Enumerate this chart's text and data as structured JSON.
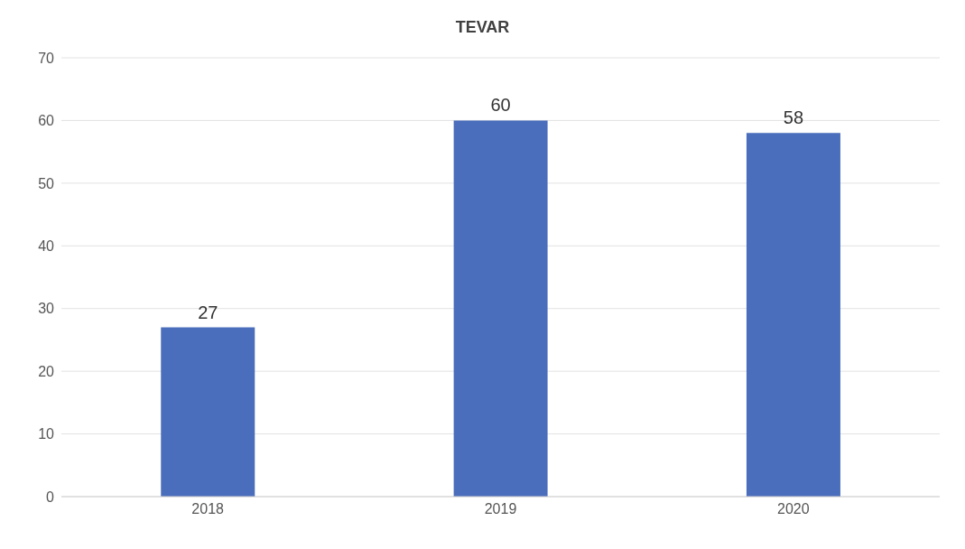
{
  "chart_data": {
    "type": "bar",
    "title": "TEVAR",
    "categories": [
      "2018",
      "2019",
      "2020"
    ],
    "values": [
      27,
      60,
      58
    ],
    "color": "#4a6ebb",
    "ylim": [
      0,
      70
    ],
    "yticks": [
      0,
      10,
      20,
      30,
      40,
      50,
      60,
      70
    ],
    "grid": "y",
    "data_labels": true
  }
}
